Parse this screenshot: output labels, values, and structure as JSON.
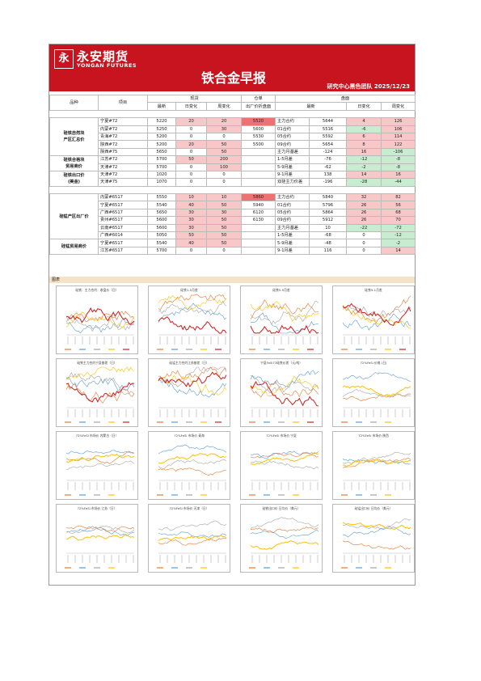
{
  "header": {
    "logo_cn": "永安期货",
    "logo_en": "YONGAN FUTURES",
    "title": "铁合金早报",
    "subtitle": "研究中心黑色团队   2025/12/23"
  },
  "table": {
    "col_pinzhong": "品种",
    "col_xiangmu": "项目",
    "col_xianhuo": "现货",
    "col_cangdan": "仓单",
    "col_panmian": "盘面",
    "col_zuixin": "最新",
    "col_ribianhua": "日变化",
    "col_zhoubianhua": "周变化",
    "col_chuchang": "出厂价折盘面",
    "col_zuixin2": "最新",
    "col_ribianhua2": "日变化",
    "col_zhoubianhua2": "周变化",
    "group1": [
      "硅铁自然块",
      "产区汇总价"
    ],
    "group2": [
      "硅铁合格块",
      "贸易商价"
    ],
    "group3": [
      "硅铁出口价",
      "(美金)"
    ],
    "group4": "硅锰产区出厂价",
    "group5": "硅锰贸易商价",
    "rows": [
      {
        "item": "宁夏#72",
        "latest": "5220",
        "d": "20",
        "w": "20",
        "wh": "5520",
        "c": "主力合约",
        "pl": "5644",
        "pd": "4",
        "pw": "126"
      },
      {
        "item": "内蒙#72",
        "latest": "5250",
        "d": "0",
        "w": "30",
        "wh": "5600",
        "c": "01合约",
        "pl": "5516",
        "pd": "-6",
        "pw": "106"
      },
      {
        "item": "青海#72",
        "latest": "5200",
        "d": "0",
        "w": "0",
        "wh": "5530",
        "c": "05合约",
        "pl": "5592",
        "pd": "6",
        "pw": "114"
      },
      {
        "item": "陕西#72",
        "latest": "5200",
        "d": "20",
        "w": "50",
        "wh": "5500",
        "c": "09合约",
        "pl": "5654",
        "pd": "8",
        "pw": "122"
      },
      {
        "item": "陕西#75",
        "latest": "5650",
        "d": "0",
        "w": "50",
        "wh": "",
        "c": "主力月基差",
        "pl": "-124",
        "pd": "16",
        "pw": "-106"
      },
      {
        "item": "江苏#72",
        "latest": "5700",
        "d": "50",
        "w": "200",
        "wh": "",
        "c": "1-5月差",
        "pl": "-76",
        "pd": "-12",
        "pw": "-8"
      },
      {
        "item": "天津#72",
        "latest": "5700",
        "d": "0",
        "w": "100",
        "wh": "",
        "c": "5-9月差",
        "pl": "-62",
        "pd": "-2",
        "pw": "-8"
      },
      {
        "item": "天津#72",
        "latest": "1020",
        "d": "0",
        "w": "0",
        "wh": "",
        "c": "9-1月差",
        "pl": "138",
        "pd": "14",
        "pw": "16"
      },
      {
        "item": "天津#75",
        "latest": "1070",
        "d": "0",
        "w": "0",
        "wh": "",
        "c": "双硅主力价差",
        "pl": "-196",
        "pd": "-28",
        "pw": "-44"
      },
      {
        "item": "内蒙#6517",
        "latest": "5550",
        "d": "10",
        "w": "10",
        "wh": "5860",
        "c": "主力合约",
        "pl": "5840",
        "pd": "32",
        "pw": "82"
      },
      {
        "item": "宁夏#6517",
        "latest": "5540",
        "d": "40",
        "w": "50",
        "wh": "5940",
        "c": "01合约",
        "pl": "5796",
        "pd": "26",
        "pw": "56"
      },
      {
        "item": "广西#6517",
        "latest": "5650",
        "d": "30",
        "w": "30",
        "wh": "6120",
        "c": "05合约",
        "pl": "5864",
        "pd": "26",
        "pw": "68"
      },
      {
        "item": "贵州#6517",
        "latest": "5600",
        "d": "30",
        "w": "50",
        "wh": "6130",
        "c": "09合约",
        "pl": "5912",
        "pd": "26",
        "pw": "70"
      },
      {
        "item": "云南#6517",
        "latest": "5600",
        "d": "30",
        "w": "50",
        "wh": "",
        "c": "主力月基差",
        "pl": "10",
        "pd": "-22",
        "pw": "-72"
      },
      {
        "item": "广西#6014",
        "latest": "5050",
        "d": "50",
        "w": "50",
        "wh": "",
        "c": "1-5月差",
        "pl": "-68",
        "pd": "0",
        "pw": "-12"
      },
      {
        "item": "宁夏#6517",
        "latest": "5540",
        "d": "40",
        "w": "50",
        "wh": "",
        "c": "5-9月差",
        "pl": "-48",
        "pd": "0",
        "pw": "-2"
      },
      {
        "item": "江苏#6517",
        "latest": "5700",
        "d": "0",
        "w": "0",
        "wh": "",
        "c": "9-1月差",
        "pl": "116",
        "pd": "0",
        "pw": "14"
      }
    ]
  },
  "chart_band": "图表",
  "charts": [
    {
      "title": "硅铁：主力合约：收盘价（日）"
    },
    {
      "title": "硅铁1-5月差"
    },
    {
      "title": "硅铁5-9月差"
    },
    {
      "title": "硅铁9-1月差"
    },
    {
      "title": "硅铁主力合约宁夏基差（日）"
    },
    {
      "title": "硅锰主力合约江苏基差（日）"
    },
    {
      "title": "宁夏FeSi72硅铁价差（元/吨）"
    },
    {
      "title": "72%FeSi 价格  (日)"
    },
    {
      "title": "72%FeSi 市场价  内蒙古（日）"
    },
    {
      "title": "72%FeSi 市场价  青海"
    },
    {
      "title": "72%FeSi 市场价  宁夏"
    },
    {
      "title": "72%FeSi 市场价  陕西"
    },
    {
      "title": "72%FeSi 市场价  江苏（日）"
    },
    {
      "title": "72%FeSi 市场价  天津（日）"
    },
    {
      "title": "硅铁出口价 日均价（美元）"
    },
    {
      "title": "硅锰出口价 日均价（美元）"
    }
  ],
  "series_colors": [
    "#e8762b",
    "#5b9bd5",
    "#a5a5a5",
    "#ffc000",
    "#d61a1a",
    "#3b7dc7"
  ]
}
